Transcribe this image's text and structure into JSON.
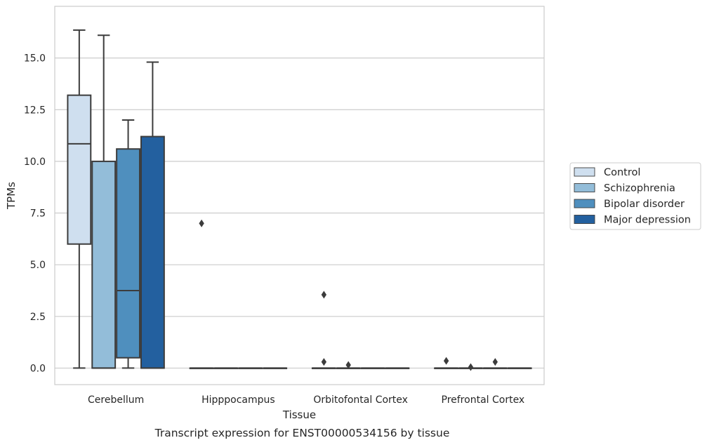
{
  "chart_data": {
    "type": "box",
    "xlabel": "Tissue",
    "ylabel": "TPMs",
    "caption": "Transcript expression for ENST00000534156 by tissue",
    "ylim": [
      -0.8,
      17.5
    ],
    "yticks": [
      0.0,
      2.5,
      5.0,
      7.5,
      10.0,
      12.5,
      15.0
    ],
    "ytick_labels": [
      "0.0",
      "2.5",
      "5.0",
      "7.5",
      "10.0",
      "12.5",
      "15.0"
    ],
    "categories": [
      "Cerebellum",
      "Hipppocampus",
      "Orbitofontal Cortex",
      "Prefrontal Cortex"
    ],
    "grid": "horizontal",
    "legend_position": "right",
    "series": [
      {
        "name": "Control",
        "color": "#cfdfef",
        "boxes": [
          {
            "min": 0.0,
            "q1": 6.0,
            "median": 10.85,
            "q3": 13.2,
            "max": 16.35,
            "outliers": []
          },
          {
            "min": 0.0,
            "q1": 0.0,
            "median": 0.0,
            "q3": 0.0,
            "max": 0.0,
            "outliers": [
              7.0
            ]
          },
          {
            "min": 0.0,
            "q1": 0.0,
            "median": 0.0,
            "q3": 0.0,
            "max": 0.0,
            "outliers": [
              3.55,
              0.3
            ]
          },
          {
            "min": 0.0,
            "q1": 0.0,
            "median": 0.0,
            "q3": 0.0,
            "max": 0.0,
            "outliers": [
              0.35
            ]
          }
        ]
      },
      {
        "name": "Schizophrenia",
        "color": "#93bdd9",
        "boxes": [
          {
            "min": 0.0,
            "q1": 0.0,
            "median": 0.0,
            "q3": 10.0,
            "max": 16.1,
            "outliers": []
          },
          {
            "min": 0.0,
            "q1": 0.0,
            "median": 0.0,
            "q3": 0.0,
            "max": 0.0,
            "outliers": []
          },
          {
            "min": 0.0,
            "q1": 0.0,
            "median": 0.0,
            "q3": 0.0,
            "max": 0.0,
            "outliers": [
              0.15
            ]
          },
          {
            "min": 0.0,
            "q1": 0.0,
            "median": 0.0,
            "q3": 0.0,
            "max": 0.0,
            "outliers": [
              0.05
            ]
          }
        ]
      },
      {
        "name": "Bipolar disorder",
        "color": "#4f8fbe",
        "boxes": [
          {
            "min": 0.0,
            "q1": 0.5,
            "median": 3.75,
            "q3": 10.6,
            "max": 12.0,
            "outliers": []
          },
          {
            "min": 0.0,
            "q1": 0.0,
            "median": 0.0,
            "q3": 0.0,
            "max": 0.0,
            "outliers": []
          },
          {
            "min": 0.0,
            "q1": 0.0,
            "median": 0.0,
            "q3": 0.0,
            "max": 0.0,
            "outliers": []
          },
          {
            "min": 0.0,
            "q1": 0.0,
            "median": 0.0,
            "q3": 0.0,
            "max": 0.0,
            "outliers": [
              0.3
            ]
          }
        ]
      },
      {
        "name": "Major depression",
        "color": "#23609f",
        "boxes": [
          {
            "min": 0.0,
            "q1": 0.0,
            "median": 0.0,
            "q3": 11.2,
            "max": 14.8,
            "outliers": []
          },
          {
            "min": 0.0,
            "q1": 0.0,
            "median": 0.0,
            "q3": 0.0,
            "max": 0.0,
            "outliers": []
          },
          {
            "min": 0.0,
            "q1": 0.0,
            "median": 0.0,
            "q3": 0.0,
            "max": 0.0,
            "outliers": []
          },
          {
            "min": 0.0,
            "q1": 0.0,
            "median": 0.0,
            "q3": 0.0,
            "max": 0.0,
            "outliers": []
          }
        ]
      }
    ]
  }
}
